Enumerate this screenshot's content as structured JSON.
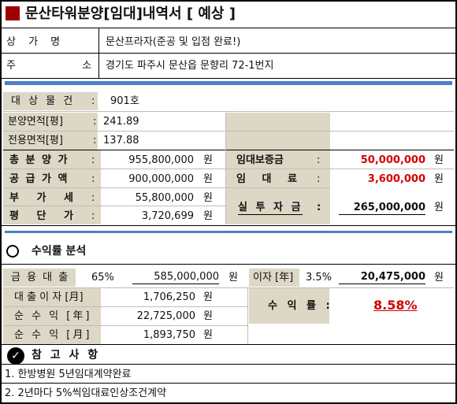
{
  "title": "문산타워분양[임대]내역서 [ 예상 ]",
  "property": {
    "name_label": "상 가 명",
    "name_value": "문산프라자(준공 및 입점 완료!)",
    "address_label": "주 소",
    "address_value": "경기도 파주시 문산읍 문향리 72-1번지"
  },
  "details": {
    "unit_label": "대 상 물 건",
    "unit_colon": ":",
    "unit_value": "901호",
    "sale_area_label": "분양면적[평]",
    "sale_area_colon": ":",
    "sale_area_value": "241.89",
    "exclusive_area_label": "전용면적[평]",
    "exclusive_area_colon": ":",
    "exclusive_area_value": "137.88"
  },
  "costs": {
    "total_label": "총 분 양 가",
    "total_value": "955,800,000",
    "supply_label": "공 급 가 액",
    "supply_value": "900,000,000",
    "vat_label": "부 가 세",
    "vat_value": "55,800,000",
    "per_pyeong_label": "평 단 가",
    "per_pyeong_value": "3,720,699",
    "colon": ":",
    "unit": "원",
    "deposit_label": "임대보증금",
    "deposit_value": "50,000,000",
    "rent_label": "임 대 료",
    "rent_value": "3,600,000",
    "actual_label": "실 투 자 금",
    "actual_value": "265,000,000"
  },
  "analysis": {
    "section_title": "수익률 분석",
    "loan_label": "금 융 대 출",
    "loan_pct": "65%",
    "loan_value": "585,000,000",
    "interest_label": "이자 [年]",
    "interest_pct": "3.5%",
    "interest_value": "20,475,000",
    "monthly_interest_label": "대 출 이 자 [月]",
    "monthly_interest_value": "1,706,250",
    "annual_profit_label": "순 수 익 [年]",
    "annual_profit_value": "22,725,000",
    "monthly_profit_label": "순 수 익 [月]",
    "monthly_profit_value": "1,893,750",
    "yield_label": "수 익 률 :",
    "yield_value": "8.58%",
    "unit": "원"
  },
  "notes": {
    "title": "참 고 사 항",
    "items": [
      "1. 한방병원 5년임대계약완료",
      "2. 2년마다 5%씩임대료인상조건계약"
    ]
  },
  "colors": {
    "accent_red": "#a00000",
    "blue_rule": "#4a7fc9",
    "tan": "#ddd7c6",
    "value_red": "#d40000"
  }
}
